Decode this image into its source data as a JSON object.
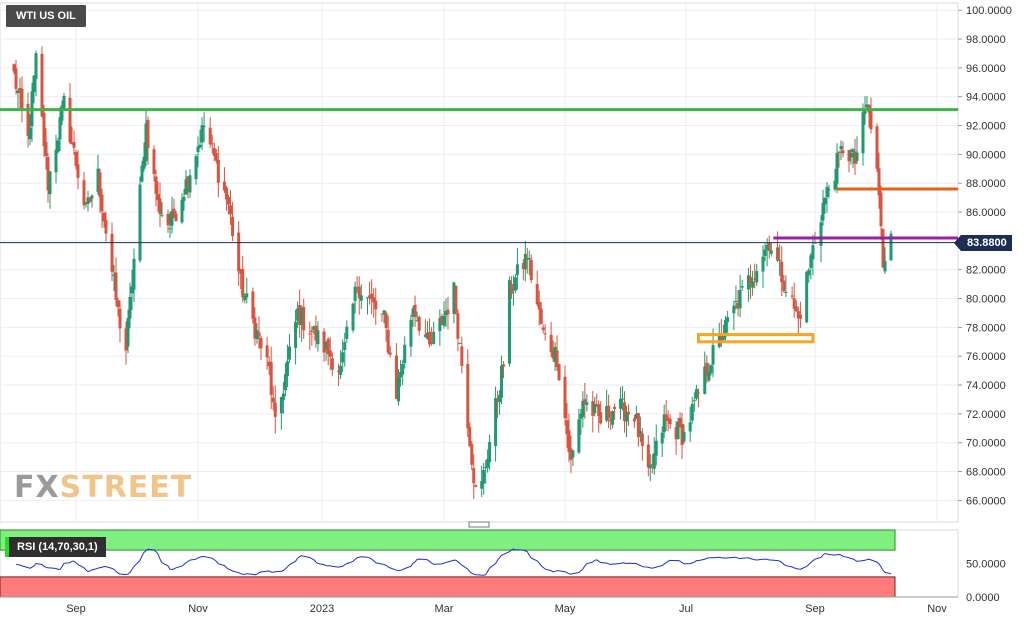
{
  "header": {
    "title": "WTI US OIL"
  },
  "indicator": {
    "label": "RSI (14,70,30,1)"
  },
  "price_label": "83.8800",
  "watermark": {
    "part1": "FX",
    "part2": "STREET"
  },
  "rsi_axis": [
    "50.0000",
    "0.0000"
  ],
  "colors": {
    "bull": "#1f9a6e",
    "bear": "#d9533f",
    "green_line": "#3db34a",
    "orange_line": "#e0601c",
    "purple_line": "#9a1fa6",
    "current_line": "#1c2e56",
    "rsi_line": "#1f2fd0",
    "overbought": "#7ff07f",
    "oversold": "#ff7a7a",
    "support_box": "#f5a623"
  },
  "chart_data": {
    "type": "candlestick",
    "title": "WTI US OIL",
    "y_axis": {
      "min": 64.5,
      "max": 100.5,
      "ticks": [
        "100.0000",
        "98.0000",
        "96.0000",
        "94.0000",
        "92.0000",
        "90.0000",
        "88.0000",
        "86.0000",
        "84.0000",
        "82.0000",
        "80.0000",
        "78.0000",
        "76.0000",
        "74.0000",
        "72.0000",
        "70.0000",
        "68.0000",
        "66.0000"
      ]
    },
    "x_axis": {
      "labels": [
        "Sep",
        "Nov",
        "2023",
        "Mar",
        "May",
        "Jul",
        "Sep",
        "Nov"
      ]
    },
    "horizontal_levels": [
      {
        "name": "resistance",
        "value": 93.1,
        "color": "#3db34a"
      },
      {
        "name": "orange-level",
        "value": 87.6,
        "color": "#e0601c"
      },
      {
        "name": "purple-level",
        "value": 84.2,
        "color": "#9a1fa6"
      },
      {
        "name": "current-price",
        "value": 83.88,
        "color": "#1c2e56"
      }
    ],
    "support_zone": {
      "low": 77.0,
      "high": 77.5,
      "start": "2023-07",
      "end": "2023-08"
    },
    "path_keypoints": [
      [
        "2022-08-01",
        95.5
      ],
      [
        "2022-08-08",
        91.0
      ],
      [
        "2022-08-12",
        96.5
      ],
      [
        "2022-08-18",
        88.0
      ],
      [
        "2022-08-26",
        93.5
      ],
      [
        "2022-09-06",
        86.0
      ],
      [
        "2022-09-12",
        88.5
      ],
      [
        "2022-09-22",
        79.0
      ],
      [
        "2022-09-26",
        76.5
      ],
      [
        "2022-10-06",
        92.0
      ],
      [
        "2022-10-12",
        86.5
      ],
      [
        "2022-10-18",
        85.0
      ],
      [
        "2022-10-26",
        88.0
      ],
      [
        "2022-11-04",
        92.0
      ],
      [
        "2022-11-16",
        86.5
      ],
      [
        "2022-11-22",
        81.0
      ],
      [
        "2022-12-06",
        75.0
      ],
      [
        "2022-12-09",
        71.0
      ],
      [
        "2022-12-20",
        79.0
      ],
      [
        "2023-01-03",
        76.5
      ],
      [
        "2023-01-10",
        75.0
      ],
      [
        "2023-01-18",
        81.0
      ],
      [
        "2023-01-31",
        78.5
      ],
      [
        "2023-02-06",
        73.5
      ],
      [
        "2023-02-14",
        79.5
      ],
      [
        "2023-02-22",
        76.5
      ],
      [
        "2023-03-06",
        80.5
      ],
      [
        "2023-03-10",
        75.5
      ],
      [
        "2023-03-17",
        66.5
      ],
      [
        "2023-03-20",
        67.0
      ],
      [
        "2023-03-31",
        75.5
      ],
      [
        "2023-04-03",
        80.5
      ],
      [
        "2023-04-12",
        83.0
      ],
      [
        "2023-04-20",
        77.5
      ],
      [
        "2023-04-27",
        76.0
      ],
      [
        "2023-05-04",
        68.5
      ],
      [
        "2023-05-10",
        73.0
      ],
      [
        "2023-05-19",
        71.5
      ],
      [
        "2023-05-26",
        72.5
      ],
      [
        "2023-06-05",
        72.0
      ],
      [
        "2023-06-12",
        67.5
      ],
      [
        "2023-06-20",
        71.5
      ],
      [
        "2023-06-30",
        70.5
      ],
      [
        "2023-07-12",
        75.5
      ],
      [
        "2023-07-25",
        79.5
      ],
      [
        "2023-08-10",
        84.0
      ],
      [
        "2023-08-24",
        78.5
      ],
      [
        "2023-08-31",
        83.5
      ],
      [
        "2023-09-05",
        86.5
      ],
      [
        "2023-09-15",
        90.5
      ],
      [
        "2023-09-21",
        89.5
      ],
      [
        "2023-09-27",
        93.5
      ],
      [
        "2023-10-02",
        89.0
      ],
      [
        "2023-10-05",
        82.5
      ],
      [
        "2023-10-09",
        84.5
      ]
    ],
    "rsi": {
      "min": 0,
      "max": 100,
      "overbought": 70,
      "oversold": 30,
      "last": 48,
      "axis_labels": [
        "50.0000",
        "0.0000"
      ]
    }
  }
}
